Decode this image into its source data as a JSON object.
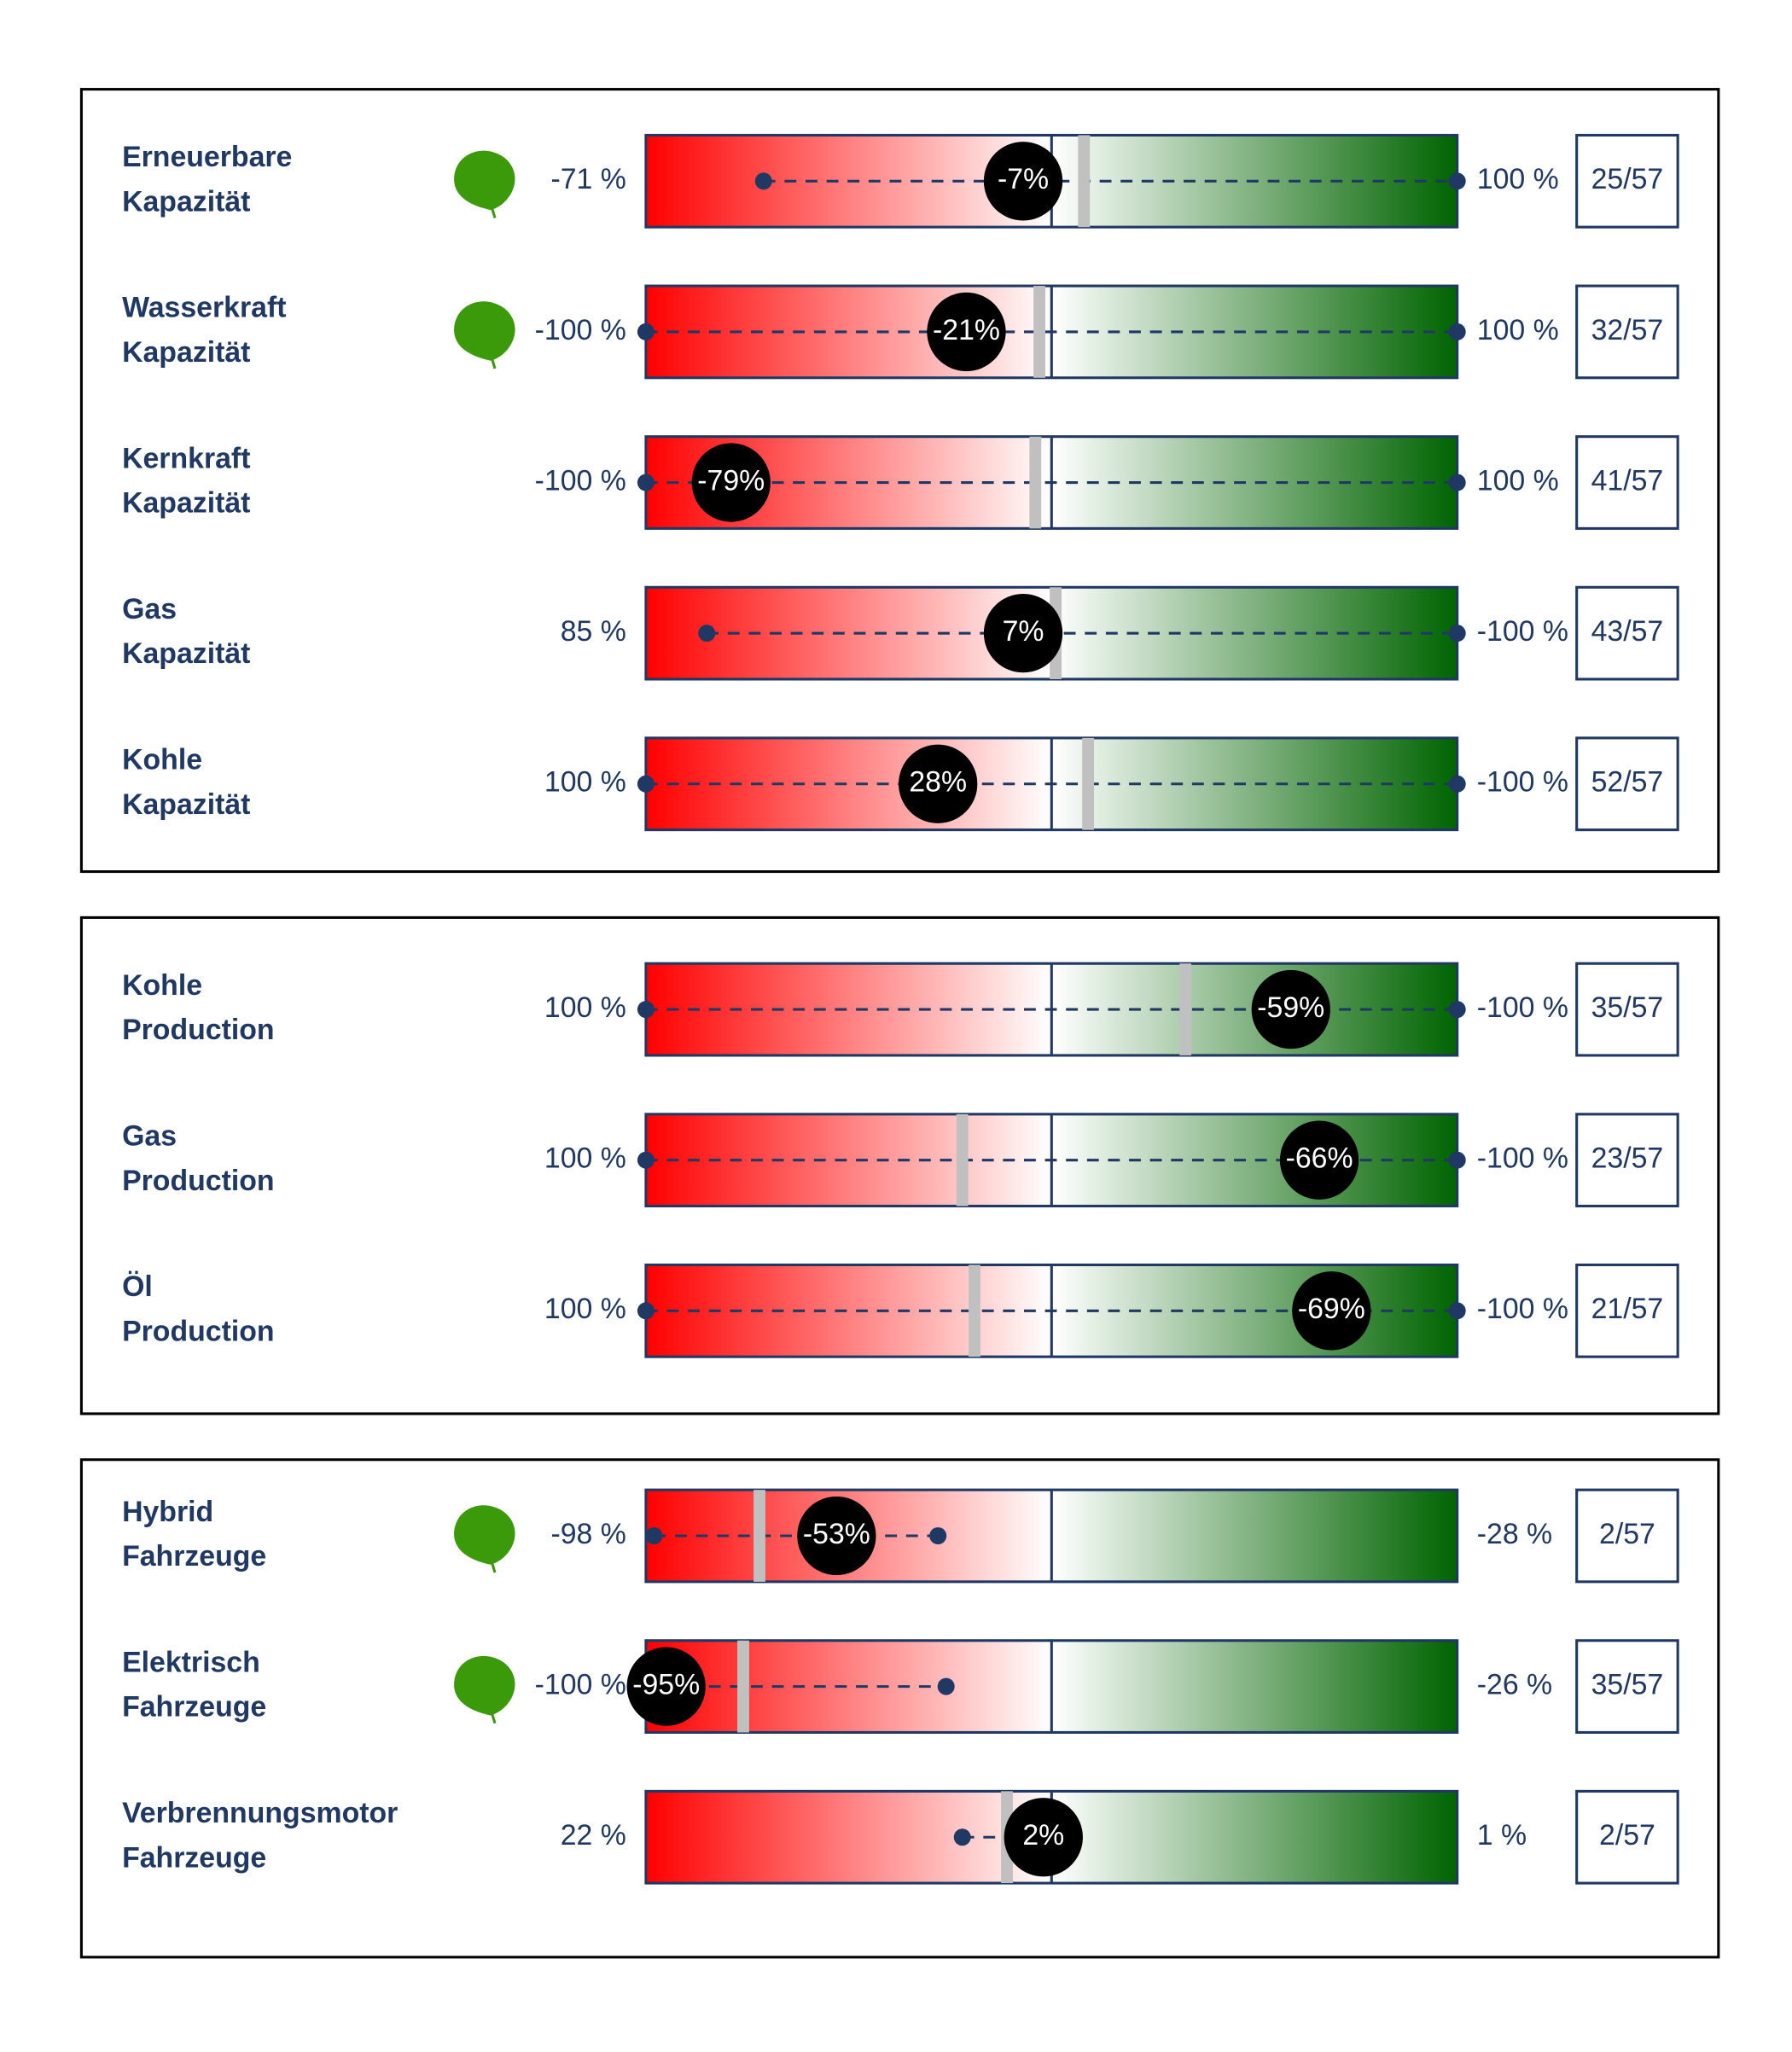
{
  "panels": [
    {
      "rows": [
        {
          "name": [
            "Erneuerbare",
            "Kapazität"
          ],
          "leaf": true,
          "reversed": false,
          "min": {
            "value": -71,
            "label": "-71 %"
          },
          "max": {
            "value": 100,
            "label": "100 %"
          },
          "current": {
            "value": -7,
            "label": "-7%"
          },
          "marker": 8,
          "rank": "25/57"
        },
        {
          "name": [
            "Wasserkraft",
            "Kapazität"
          ],
          "leaf": true,
          "reversed": false,
          "min": {
            "value": -100,
            "label": "-100 %"
          },
          "max": {
            "value": 100,
            "label": "100 %"
          },
          "current": {
            "value": -21,
            "label": "-21%"
          },
          "marker": -3,
          "rank": "32/57"
        },
        {
          "name": [
            "Kernkraft",
            "Kapazität"
          ],
          "leaf": false,
          "reversed": false,
          "min": {
            "value": -100,
            "label": "-100 %"
          },
          "max": {
            "value": 100,
            "label": "100 %"
          },
          "current": {
            "value": -79,
            "label": "-79%"
          },
          "marker": -4,
          "rank": "41/57"
        },
        {
          "name": [
            "Gas",
            "Kapazität"
          ],
          "leaf": false,
          "reversed": true,
          "min": {
            "value": 85,
            "label": "85 %"
          },
          "max": {
            "value": -100,
            "label": "-100 %"
          },
          "current": {
            "value": 7,
            "label": "7%"
          },
          "marker": -1,
          "rank": "43/57"
        },
        {
          "name": [
            "Kohle",
            "Kapazität"
          ],
          "leaf": false,
          "reversed": true,
          "min": {
            "value": 100,
            "label": "100 %"
          },
          "max": {
            "value": -100,
            "label": "-100 %"
          },
          "current": {
            "value": 28,
            "label": "28%"
          },
          "marker": -9,
          "rank": "52/57"
        }
      ]
    },
    {
      "rows": [
        {
          "name": [
            "Kohle",
            "Production"
          ],
          "leaf": false,
          "reversed": true,
          "min": {
            "value": 100,
            "label": "100 %"
          },
          "max": {
            "value": -100,
            "label": "-100 %"
          },
          "current": {
            "value": -59,
            "label": "-59%"
          },
          "marker": -33,
          "rank": "35/57"
        },
        {
          "name": [
            "Gas",
            "Production"
          ],
          "leaf": false,
          "reversed": true,
          "min": {
            "value": 100,
            "label": "100 %"
          },
          "max": {
            "value": -100,
            "label": "-100 %"
          },
          "current": {
            "value": -66,
            "label": "-66%"
          },
          "marker": 22,
          "rank": "23/57"
        },
        {
          "name": [
            "Öl",
            "Production"
          ],
          "leaf": false,
          "reversed": true,
          "min": {
            "value": 100,
            "label": "100 %"
          },
          "max": {
            "value": -100,
            "label": "-100 %"
          },
          "current": {
            "value": -69,
            "label": "-69%"
          },
          "marker": 19,
          "rank": "21/57"
        }
      ]
    },
    {
      "rows": [
        {
          "name": [
            "Hybrid",
            "Fahrzeuge"
          ],
          "leaf": true,
          "reversed": false,
          "min": {
            "value": -98,
            "label": "-98 %"
          },
          "max": {
            "value": -28,
            "label": "-28 %"
          },
          "current": {
            "value": -53,
            "label": "-53%"
          },
          "marker": -72,
          "rank": "2/57"
        },
        {
          "name": [
            "Elektrisch",
            "Fahrzeuge"
          ],
          "leaf": true,
          "reversed": false,
          "min": {
            "value": -100,
            "label": "-100 %"
          },
          "max": {
            "value": -26,
            "label": "-26 %"
          },
          "current": {
            "value": -95,
            "label": "-95%"
          },
          "marker": -76,
          "rank": "35/57"
        },
        {
          "name": [
            "Verbrennungsmotor",
            "Fahrzeuge"
          ],
          "leaf": false,
          "reversed": true,
          "min": {
            "value": 22,
            "label": "22 %"
          },
          "max": {
            "value": 1,
            "label": "1 %"
          },
          "current": {
            "value": 2,
            "label": "2%"
          },
          "marker": 11,
          "rank": "2/57"
        }
      ]
    }
  ]
}
